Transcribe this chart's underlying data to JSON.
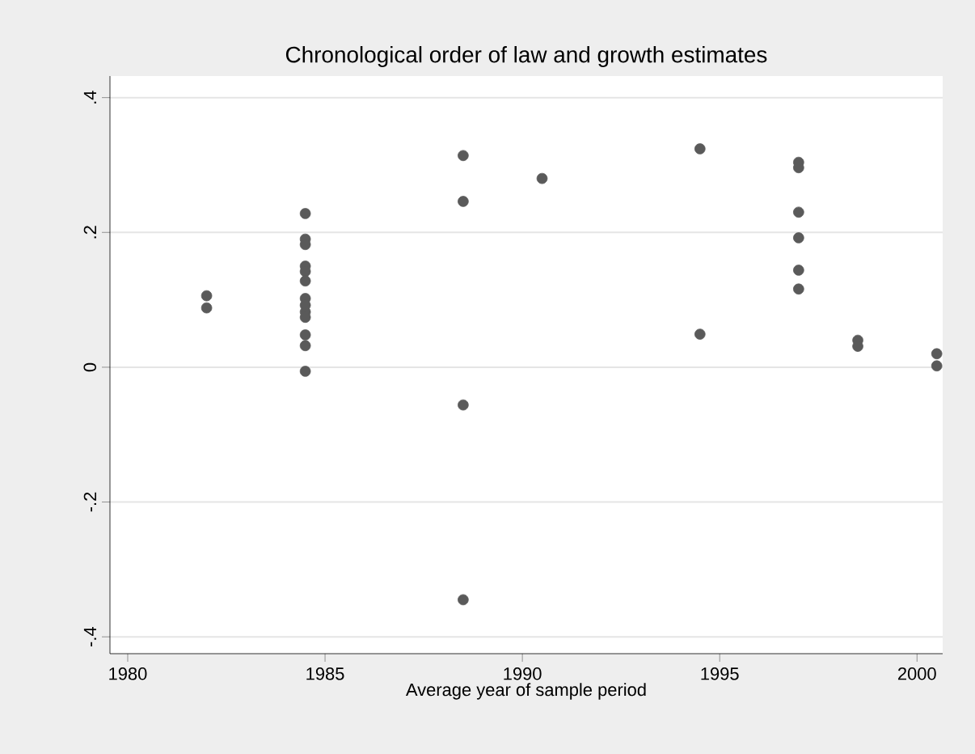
{
  "chart_data": {
    "type": "scatter",
    "title": "Chronological order of law and growth estimates",
    "xlabel": "Average year of sample period",
    "x": [
      1982,
      1982,
      1984.5,
      1984.5,
      1984.5,
      1984.5,
      1984.5,
      1984.5,
      1984.5,
      1984.5,
      1984.5,
      1984.5,
      1984.5,
      1984.5,
      1984.5,
      1988.5,
      1988.5,
      1988.5,
      1988.5,
      1990.5,
      1994.5,
      1994.5,
      1997,
      1997,
      1997,
      1997,
      1997,
      1997,
      1998.5,
      1998.5,
      2000.5,
      2000.5
    ],
    "values": [
      0.106,
      0.088,
      0.228,
      0.19,
      0.182,
      0.15,
      0.142,
      0.128,
      0.102,
      0.092,
      0.082,
      0.074,
      0.048,
      0.032,
      -0.006,
      0.314,
      0.246,
      -0.056,
      -0.345,
      0.28,
      0.324,
      0.049,
      0.304,
      0.296,
      0.23,
      0.192,
      0.144,
      0.116,
      0.04,
      0.031,
      0.02,
      0.002
    ],
    "color": "#5a5a5a",
    "marker": "circle",
    "grid": "y",
    "xlim": [
      1979.55,
      2000.65
    ],
    "xticks": [
      1980,
      1985,
      1990,
      1995,
      2000
    ],
    "ylim": [
      -0.425,
      0.432
    ],
    "yticks": [
      {
        "value": -0.4,
        "label": "-.4"
      },
      {
        "value": -0.2,
        "label": "-.2"
      },
      {
        "value": 0,
        "label": "0"
      },
      {
        "value": 0.2,
        "label": ".2"
      },
      {
        "value": 0.4,
        "label": ".4"
      }
    ]
  }
}
